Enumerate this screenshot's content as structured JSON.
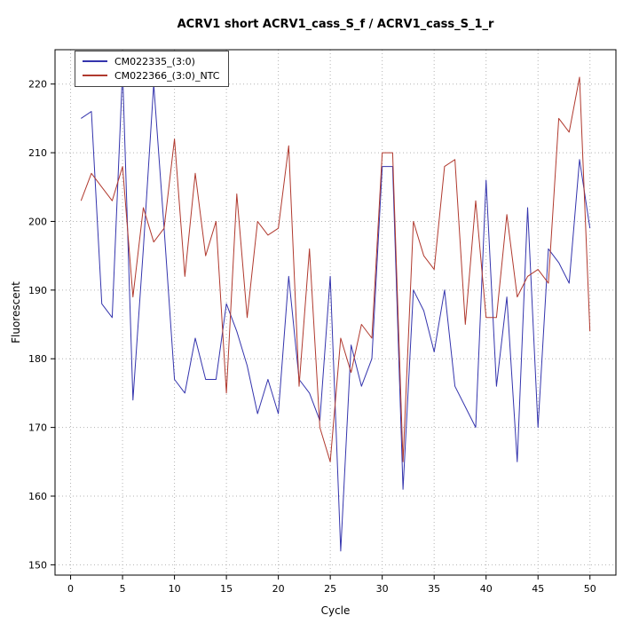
{
  "title": "ACRV1 short ACRV1_cass_S_f / ACRV1_cass_S_1_r",
  "chart_data": {
    "type": "line",
    "title": "ACRV1 short ACRV1_cass_S_f / ACRV1_cass_S_1_r",
    "xlabel": "Cycle",
    "ylabel": "Fluorescent",
    "xlim": [
      -1.5,
      52.5
    ],
    "ylim": [
      148.5,
      225
    ],
    "xticks": [
      0,
      5,
      10,
      15,
      20,
      25,
      30,
      35,
      40,
      45,
      50
    ],
    "yticks": [
      150,
      160,
      170,
      180,
      190,
      200,
      210,
      220
    ],
    "grid": true,
    "grid_color": "#b3b3b3",
    "legend_position": "top-left",
    "x": [
      1,
      2,
      3,
      4,
      5,
      6,
      7,
      8,
      9,
      10,
      11,
      12,
      13,
      14,
      15,
      16,
      17,
      18,
      19,
      20,
      21,
      22,
      23,
      24,
      25,
      26,
      27,
      28,
      29,
      30,
      31,
      32,
      33,
      34,
      35,
      36,
      37,
      38,
      39,
      40,
      41,
      42,
      43,
      44,
      45,
      46,
      47,
      48,
      49,
      50
    ],
    "series": [
      {
        "name": "CM022335_(3:0)",
        "color": "#3434ad",
        "values": [
          215,
          216,
          188,
          186,
          222,
          174,
          196,
          220,
          199,
          177,
          175,
          183,
          177,
          177,
          188,
          184,
          179,
          172,
          177,
          172,
          192,
          177,
          175,
          171,
          192,
          152,
          182,
          176,
          180,
          208,
          208,
          161,
          190,
          187,
          181,
          190,
          176,
          173,
          170,
          206,
          176,
          189,
          165,
          202,
          170,
          196,
          194,
          191,
          209,
          199
        ]
      },
      {
        "name": "CM022366_(3:0)_NTC",
        "color": "#b0392e",
        "values": [
          203,
          207,
          205,
          203,
          208,
          189,
          202,
          197,
          199,
          212,
          192,
          207,
          195,
          200,
          175,
          204,
          186,
          200,
          198,
          199,
          211,
          176,
          196,
          170,
          165,
          183,
          178,
          185,
          183,
          210,
          210,
          165,
          200,
          195,
          193,
          208,
          209,
          185,
          203,
          186,
          186,
          201,
          189,
          192,
          193,
          191,
          215,
          213,
          221,
          184
        ]
      }
    ]
  }
}
